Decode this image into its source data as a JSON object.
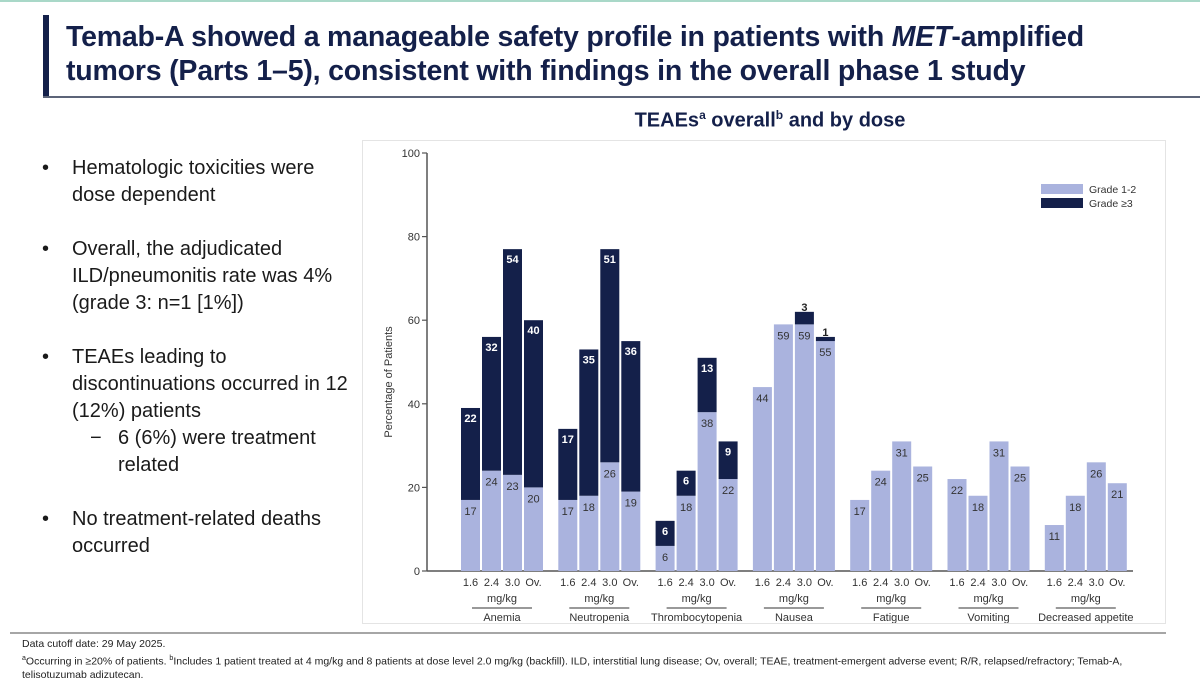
{
  "slide": {
    "title_part1": "Temab-A showed a manageable safety profile in patients with ",
    "title_italic": "MET",
    "title_part2": "-amplified tumors (Parts 1–5), consistent with findings in the overall phase 1 study",
    "colors": {
      "navy": "#14204a",
      "accent_rule": "#a9d8c8"
    }
  },
  "bullets": [
    {
      "text": "Hematologic toxicities were dose dependent"
    },
    {
      "text": "Overall, the adjudicated ILD/pneumonitis rate was 4% (grade 3: n=1 [1%])"
    },
    {
      "text": "TEAEs leading to discontinuations occurred in 12 (12%) patients",
      "sub": "6 (6%) were treatment related"
    },
    {
      "text": "No treatment-related deaths occurred"
    }
  ],
  "bullet_symbol": "•",
  "sub_symbol": "−",
  "chart_title": {
    "main1": "TEAEs",
    "sup1": "a",
    "main2": " overall",
    "sup2": "b",
    "main3": " and by dose"
  },
  "chart_data": {
    "type": "bar",
    "stacked": true,
    "title": "TEAEs overall and by dose",
    "ylabel": "Percentage of Patients",
    "xlabel": "",
    "ylim": [
      0,
      100
    ],
    "yticks": [
      0,
      20,
      40,
      60,
      80,
      100
    ],
    "grid": false,
    "legend_position": "top-right",
    "dose_labels": [
      "1.6",
      "2.4",
      "3.0",
      "Ov."
    ],
    "dose_unit": "mg/kg",
    "groups": [
      "Anemia",
      "Neutropenia",
      "Thrombocytopenia",
      "Nausea",
      "Fatigue",
      "Vomiting",
      "Decreased appetite"
    ],
    "series": [
      {
        "name": "Grade 1-2",
        "color": "#aab3de",
        "values": [
          [
            17,
            24,
            23,
            20
          ],
          [
            17,
            18,
            26,
            19
          ],
          [
            6,
            18,
            38,
            22
          ],
          [
            44,
            59,
            59,
            55
          ],
          [
            17,
            24,
            31,
            25
          ],
          [
            22,
            18,
            31,
            25
          ],
          [
            11,
            18,
            26,
            21
          ]
        ]
      },
      {
        "name": "Grade ≥3",
        "color": "#14204a",
        "values": [
          [
            22,
            32,
            54,
            40
          ],
          [
            17,
            35,
            51,
            36
          ],
          [
            6,
            6,
            13,
            9
          ],
          [
            0,
            0,
            3,
            1
          ],
          [
            0,
            0,
            0,
            0
          ],
          [
            0,
            0,
            0,
            0
          ],
          [
            0,
            0,
            0,
            0
          ]
        ]
      }
    ]
  },
  "footnotes": {
    "line1": "Data cutoff date: 29 May 2025.",
    "sup_a": "a",
    "text_a": "Occurring in ≥20% of patients. ",
    "sup_b": "b",
    "text_b": "Includes 1 patient treated at 4 mg/kg and 8 patients at dose level 2.0 mg/kg (backfill). ILD, interstitial lung disease; Ov, overall; TEAE, treatment-emergent adverse event; R/R, relapsed/refractory; Temab-A, telisotuzumab adizutecan."
  }
}
